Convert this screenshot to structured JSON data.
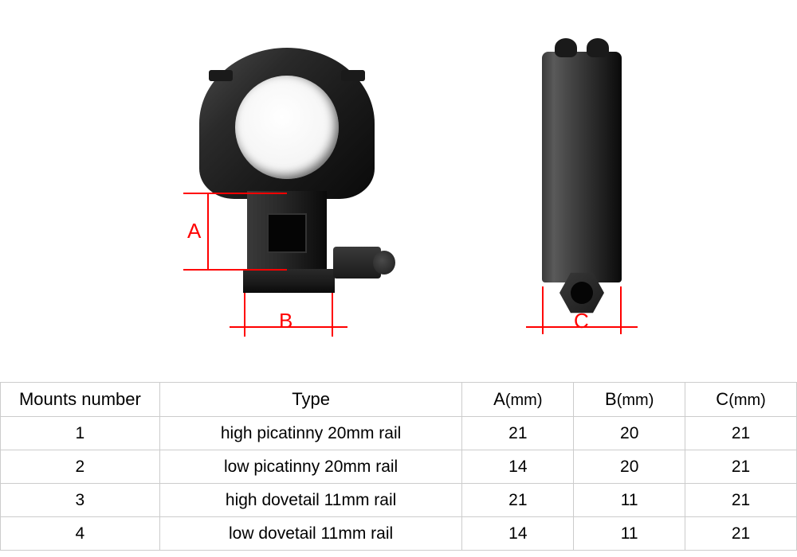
{
  "dimensions": {
    "a_label": "A",
    "b_label": "B",
    "c_label": "C"
  },
  "annotation_color": "#ff0000",
  "table": {
    "headers": {
      "mounts": "Mounts number",
      "type": "Type",
      "a_header_dim": "A",
      "a_unit": "(mm)",
      "b_header_dim": "B",
      "b_unit": "(mm)",
      "c_header_dim": "C",
      "c_unit": "(mm)"
    },
    "rows": [
      {
        "num": "1",
        "type": "high picatinny 20mm rail",
        "a": "21",
        "b": "20",
        "c": "21"
      },
      {
        "num": "2",
        "type": "low picatinny 20mm rail",
        "a": "14",
        "b": "20",
        "c": "21"
      },
      {
        "num": "3",
        "type": "high dovetail 11mm rail",
        "a": "21",
        "b": "11",
        "c": "21"
      },
      {
        "num": "4",
        "type": "low dovetail 11mm rail",
        "a": "14",
        "b": "11",
        "c": "21"
      }
    ],
    "border_color": "#cccccc",
    "text_color": "#000000",
    "header_fontsize": 22,
    "cell_fontsize": 21
  },
  "background_color": "#ffffff"
}
